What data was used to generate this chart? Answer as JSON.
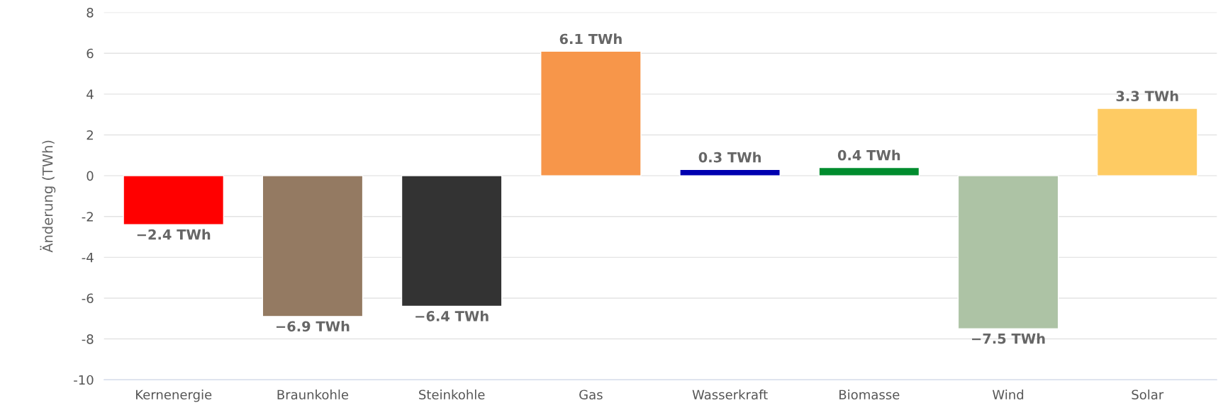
{
  "chart_data": {
    "type": "bar",
    "ylabel": "Änderung (TWh)",
    "categories": [
      "Kernenergie",
      "Braunkohle",
      "Steinkohle",
      "Gas",
      "Wasserkraft",
      "Biomasse",
      "Wind",
      "Solar"
    ],
    "values": [
      -2.4,
      -6.9,
      -6.4,
      6.1,
      0.3,
      0.4,
      -7.5,
      3.3
    ],
    "colors": [
      "#ff0000",
      "#947a62",
      "#333333",
      "#f7964a",
      "#0000b0",
      "#008c2e",
      "#adc3a5",
      "#fecb63"
    ],
    "value_labels": [
      "−2.4 TWh",
      "−6.9 TWh",
      "−6.4 TWh",
      "6.1 TWh",
      "0.3 TWh",
      "0.4 TWh",
      "−7.5 TWh",
      "3.3 TWh"
    ],
    "ylim": [
      -10,
      8
    ],
    "yticks": [
      -10,
      -8,
      -6,
      -4,
      -2,
      0,
      2,
      4,
      6,
      8
    ],
    "grid": "y",
    "legend": false
  }
}
